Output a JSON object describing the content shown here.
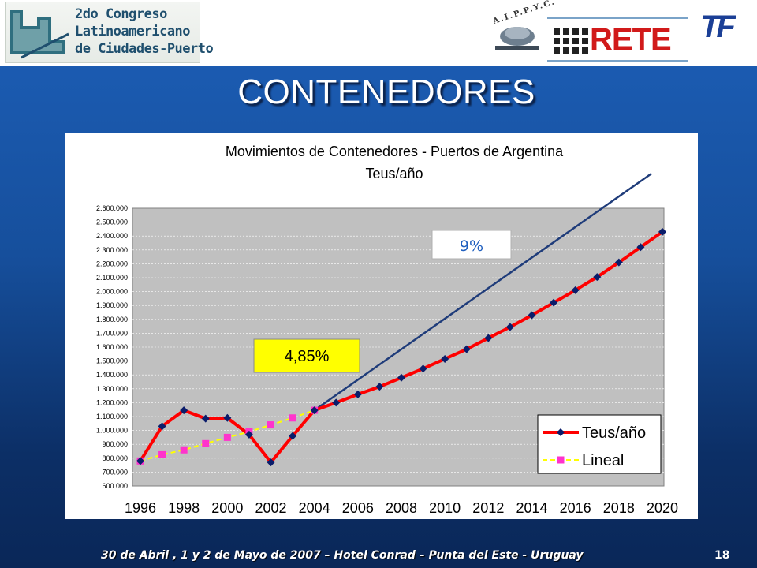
{
  "header": {
    "congress_lines": [
      "2do Congreso",
      "Latinoamericano",
      "de Ciudades-Puerto"
    ],
    "aippyc_label": "A.I.P.P.Y.C.",
    "rete_label": "RETE",
    "tf_label": "TF"
  },
  "slide": {
    "title": "CONTENEDORES",
    "footer": "30 de Abril , 1 y 2 de Mayo de 2007 – Hotel Conrad – Punta del Este - Uruguay",
    "number": "18"
  },
  "chart_data": {
    "type": "line",
    "title": "Movimientos de Contenedores - Puertos de Argentina",
    "subtitle": "Teus/año",
    "xlabel": "",
    "ylabel": "",
    "xlim": [
      1996,
      2020
    ],
    "ylim": [
      600000,
      2600000
    ],
    "x_ticks": [
      "1996",
      "1998",
      "2000",
      "2002",
      "2004",
      "2006",
      "2008",
      "2010",
      "2012",
      "2014",
      "2016",
      "2018",
      "2020"
    ],
    "y_ticks": [
      "600.000",
      "700.000",
      "800.000",
      "900.000",
      "1.000.000",
      "1.100.000",
      "1.200.000",
      "1.300.000",
      "1.400.000",
      "1.500.000",
      "1.600.000",
      "1.700.000",
      "1.800.000",
      "1.900.000",
      "2.000.000",
      "2.100.000",
      "2.200.000",
      "2.300.000",
      "2.400.000",
      "2.500.000",
      "2.600.000"
    ],
    "x": [
      1996,
      1997,
      1998,
      1999,
      2000,
      2001,
      2002,
      2003,
      2004,
      2005,
      2006,
      2007,
      2008,
      2009,
      2010,
      2011,
      2012,
      2013,
      2014,
      2015,
      2016,
      2017,
      2018,
      2019,
      2020
    ],
    "series": [
      {
        "name": "Teus/año",
        "color": "#ff0000",
        "marker_color": "#0b1d6b",
        "values": [
          780000,
          1030000,
          1145000,
          1085000,
          1090000,
          970000,
          770000,
          960000,
          1145000,
          1200000,
          1260000,
          1315000,
          1380000,
          1445000,
          1515000,
          1585000,
          1665000,
          1745000,
          1830000,
          1920000,
          2010000,
          2105000,
          2210000,
          2320000,
          2430000
        ]
      },
      {
        "name": "Lineal",
        "color": "#ffff00",
        "marker_color": "#ff33cc",
        "x": [
          1996,
          1997,
          1998,
          1999,
          2000,
          2001,
          2002,
          2003,
          2004
        ],
        "values": [
          780000,
          825000,
          860000,
          905000,
          950000,
          990000,
          1040000,
          1090000,
          1145000
        ]
      }
    ],
    "growth_line": {
      "label": "9%",
      "color": "#1f3c7a",
      "start": [
        2004,
        1145000
      ],
      "end": [
        2019.5,
        2850000
      ]
    },
    "annotations": [
      {
        "text": "4,85%",
        "background": "#ffff00",
        "near": "2004 historical series"
      },
      {
        "text": "9%",
        "background": "#ffffff",
        "text_color": "#1f5fbf",
        "near": "9% growth line"
      }
    ],
    "plot_background": "#c0c0c0",
    "grid": true,
    "legend_position": "bottom-right"
  }
}
